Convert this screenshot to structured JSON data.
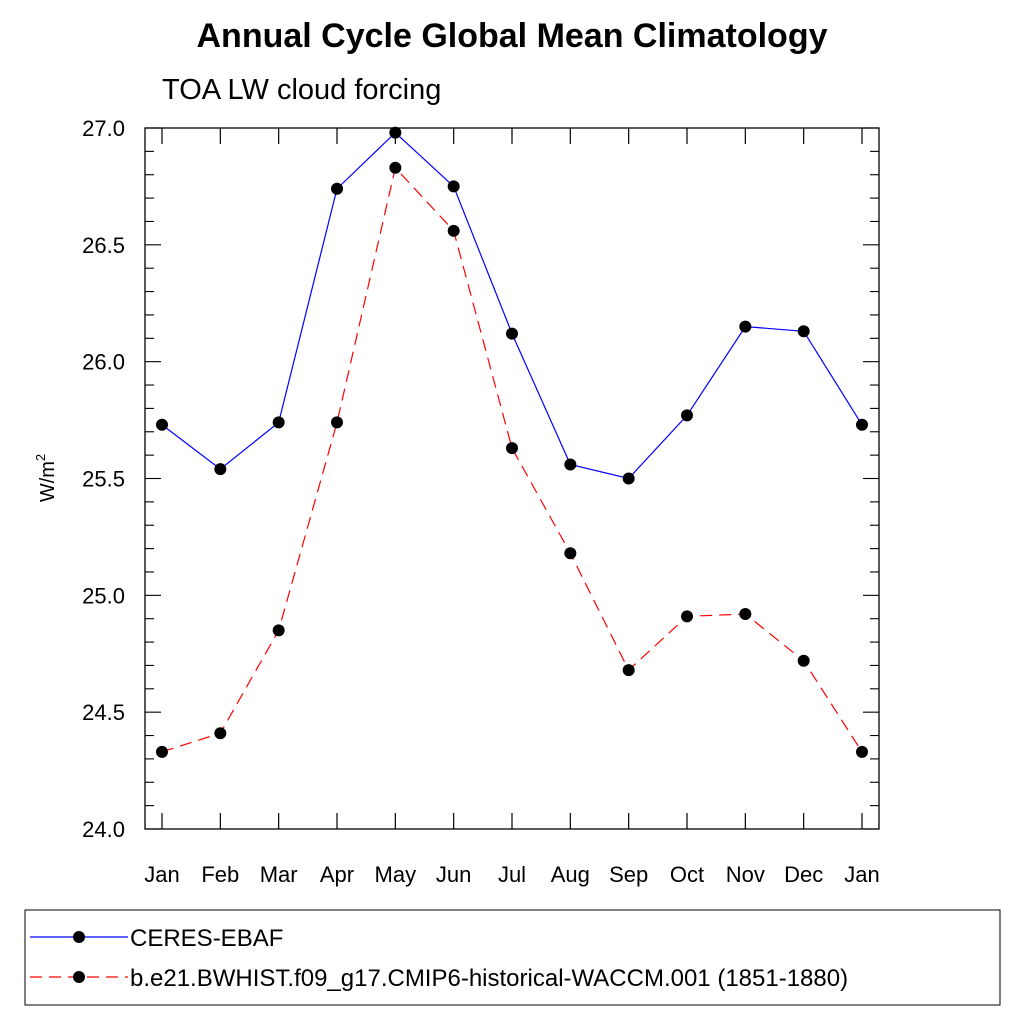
{
  "chart_data": {
    "type": "line",
    "title": "Annual Cycle Global Mean Climatology",
    "subtitle": "TOA LW cloud forcing",
    "xlabel": "",
    "ylabel": "W/m",
    "ylabel_superscript": "2",
    "categories": [
      "Jan",
      "Feb",
      "Mar",
      "Apr",
      "May",
      "Jun",
      "Jul",
      "Aug",
      "Sep",
      "Oct",
      "Nov",
      "Dec",
      "Jan"
    ],
    "ylim": [
      24.0,
      27.0
    ],
    "yticks": [
      24.0,
      24.5,
      25.0,
      25.5,
      26.0,
      26.5,
      27.0
    ],
    "ytick_labels": [
      "24.0",
      "24.5",
      "25.0",
      "25.5",
      "26.0",
      "26.5",
      "27.0"
    ],
    "grid": false,
    "legend_position": "bottom",
    "series": [
      {
        "name": "CERES-EBAF",
        "color": "#0000ff",
        "line_style": "solid",
        "marker": "filled-circle",
        "values": [
          25.73,
          25.54,
          25.74,
          26.74,
          26.98,
          26.75,
          26.12,
          25.56,
          25.5,
          25.77,
          26.15,
          26.13,
          25.73
        ]
      },
      {
        "name": "b.e21.BWHIST.f09_g17.CMIP6-historical-WACCM.001 (1851-1880)",
        "color": "#ff0000",
        "line_style": "dashed",
        "marker": "filled-circle",
        "values": [
          24.33,
          24.41,
          24.85,
          25.74,
          26.83,
          26.56,
          25.63,
          25.18,
          24.68,
          24.91,
          24.92,
          24.72,
          24.33
        ]
      }
    ]
  }
}
